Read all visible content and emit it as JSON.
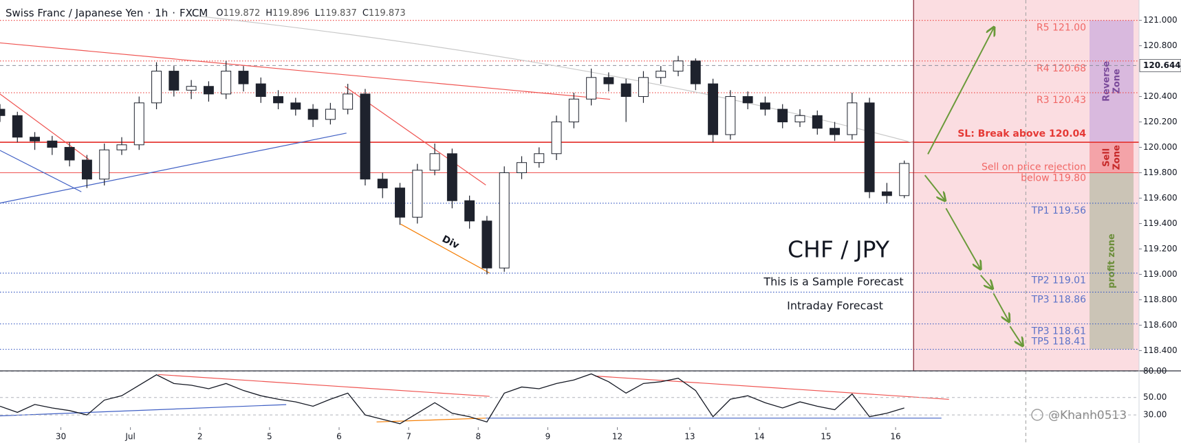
{
  "chart_data": [
    {
      "type": "candlestick",
      "header": {
        "symbol": "Swiss Franc / Japanese Yen",
        "interval": "1h",
        "source": "FXCM",
        "ohlc": [
          {
            "label": "O",
            "value": 119.872
          },
          {
            "label": "H",
            "value": 119.896
          },
          {
            "label": "L",
            "value": 119.837
          },
          {
            "label": "C",
            "value": 119.873
          }
        ]
      },
      "title": "CHF / JPY",
      "subtitles": [
        "This is a Sample Forecast",
        "Intraday Forecast"
      ],
      "annotations": {
        "divergence": "Div",
        "watermark": "@Khanh0513"
      },
      "x": [
        0,
        6,
        12,
        18,
        24,
        30,
        36,
        42,
        48,
        54,
        60,
        66,
        72,
        78,
        84,
        90,
        96,
        102,
        108,
        114,
        120,
        126,
        132,
        138,
        144,
        150,
        156,
        162,
        168,
        174,
        180,
        186,
        192,
        198,
        204,
        210,
        216,
        222,
        228,
        234,
        240,
        246,
        252,
        258,
        264,
        270,
        276,
        282,
        288,
        294,
        300,
        306,
        312
      ],
      "ohlc": [
        [
          120.3,
          120.34,
          120.2,
          120.25
        ],
        [
          120.25,
          120.28,
          120.04,
          120.08
        ],
        [
          120.08,
          120.12,
          119.98,
          120.05
        ],
        [
          120.05,
          120.09,
          119.94,
          120.0
        ],
        [
          120.0,
          120.04,
          119.85,
          119.9
        ],
        [
          119.9,
          119.94,
          119.68,
          119.75
        ],
        [
          119.75,
          120.03,
          119.7,
          119.98
        ],
        [
          119.98,
          120.08,
          119.94,
          120.02
        ],
        [
          120.02,
          120.4,
          119.98,
          120.35
        ],
        [
          120.35,
          120.67,
          120.3,
          120.6
        ],
        [
          120.6,
          120.64,
          120.4,
          120.45
        ],
        [
          120.45,
          120.53,
          120.38,
          120.48
        ],
        [
          120.48,
          120.52,
          120.36,
          120.42
        ],
        [
          120.42,
          120.68,
          120.38,
          120.6
        ],
        [
          120.6,
          120.64,
          120.44,
          120.5
        ],
        [
          120.5,
          120.55,
          120.35,
          120.4
        ],
        [
          120.4,
          120.45,
          120.3,
          120.35
        ],
        [
          120.35,
          120.39,
          120.25,
          120.3
        ],
        [
          120.3,
          120.34,
          120.16,
          120.22
        ],
        [
          120.22,
          120.35,
          120.18,
          120.3
        ],
        [
          120.3,
          120.5,
          120.26,
          120.42
        ],
        [
          120.42,
          120.46,
          119.7,
          119.75
        ],
        [
          119.75,
          119.8,
          119.6,
          119.68
        ],
        [
          119.68,
          119.72,
          119.39,
          119.45
        ],
        [
          119.45,
          119.87,
          119.4,
          119.82
        ],
        [
          119.82,
          120.03,
          119.78,
          119.95
        ],
        [
          119.95,
          119.99,
          119.52,
          119.58
        ],
        [
          119.58,
          119.62,
          119.36,
          119.42
        ],
        [
          119.42,
          119.46,
          119.0,
          119.05
        ],
        [
          119.05,
          119.85,
          119.02,
          119.8
        ],
        [
          119.8,
          119.93,
          119.75,
          119.88
        ],
        [
          119.88,
          120.0,
          119.84,
          119.95
        ],
        [
          119.95,
          120.25,
          119.9,
          120.2
        ],
        [
          120.2,
          120.43,
          120.15,
          120.38
        ],
        [
          120.38,
          120.62,
          120.33,
          120.55
        ],
        [
          120.55,
          120.59,
          120.44,
          120.5
        ],
        [
          120.5,
          120.54,
          120.2,
          120.4
        ],
        [
          120.4,
          120.6,
          120.35,
          120.55
        ],
        [
          120.55,
          120.64,
          120.5,
          120.6
        ],
        [
          120.6,
          120.72,
          120.56,
          120.68
        ],
        [
          120.68,
          120.7,
          120.45,
          120.5
        ],
        [
          120.5,
          120.54,
          120.04,
          120.1
        ],
        [
          120.1,
          120.45,
          120.06,
          120.4
        ],
        [
          120.4,
          120.44,
          120.3,
          120.35
        ],
        [
          120.35,
          120.4,
          120.25,
          120.3
        ],
        [
          120.3,
          120.34,
          120.15,
          120.2
        ],
        [
          120.2,
          120.3,
          120.16,
          120.25
        ],
        [
          120.25,
          120.29,
          120.1,
          120.15
        ],
        [
          120.15,
          120.2,
          120.05,
          120.1
        ],
        [
          120.1,
          120.43,
          120.06,
          120.35
        ],
        [
          120.35,
          120.39,
          119.6,
          119.65
        ],
        [
          119.65,
          119.72,
          119.56,
          119.62
        ],
        [
          119.62,
          119.896,
          119.6,
          119.873
        ]
      ],
      "up_color": "#ffffff",
      "down_color": "#1e222d",
      "wick_color": "#1e222d",
      "xlim": [
        0,
        393
      ],
      "ylim": [
        118.24,
        121.16
      ],
      "xticks": [
        {
          "value": 21,
          "label": "30"
        },
        {
          "value": 45,
          "label": "Jul"
        },
        {
          "value": 69,
          "label": "2"
        },
        {
          "value": 93,
          "label": "5"
        },
        {
          "value": 117,
          "label": "6"
        },
        {
          "value": 141,
          "label": "7"
        },
        {
          "value": 165,
          "label": "8"
        },
        {
          "value": 189,
          "label": "9"
        },
        {
          "value": 213,
          "label": "12"
        },
        {
          "value": 238,
          "label": "13"
        },
        {
          "value": 262,
          "label": "14"
        },
        {
          "value": 285,
          "label": "15"
        },
        {
          "value": 309,
          "label": "16"
        }
      ],
      "yticks": [
        {
          "value": 121.0,
          "label": "121.000"
        },
        {
          "value": 120.8,
          "label": "120.800"
        },
        {
          "value": 120.4,
          "label": "120.400"
        },
        {
          "value": 120.2,
          "label": "120.200"
        },
        {
          "value": 120.0,
          "label": "120.000"
        },
        {
          "value": 119.8,
          "label": "119.800"
        },
        {
          "value": 119.6,
          "label": "119.600"
        },
        {
          "value": 119.4,
          "label": "119.400"
        },
        {
          "value": 119.2,
          "label": "119.200"
        },
        {
          "value": 119.0,
          "label": "119.000"
        },
        {
          "value": 118.8,
          "label": "118.800"
        },
        {
          "value": 118.6,
          "label": "118.600"
        },
        {
          "value": 118.4,
          "label": "118.400"
        }
      ],
      "grid": false,
      "price_marker": 120.644,
      "levels": [
        {
          "label": "R5 121.00",
          "value": 121.0,
          "color": "#ef5350",
          "style": "dotted"
        },
        {
          "label": "R4 120.68",
          "value": 120.68,
          "color": "#ef5350",
          "style": "dotted"
        },
        {
          "label": "R3 120.43",
          "value": 120.43,
          "color": "#ef5350",
          "style": "dotted"
        },
        {
          "label": "SL: Break above 120.04",
          "value": 120.04,
          "color": "#e53935",
          "style": "solid"
        },
        {
          "label": [
            "Sell on price rejection",
            "below 119.80"
          ],
          "value": 119.8,
          "color": "#ef5350",
          "style": "thin"
        },
        {
          "label": "TP1 119.56",
          "value": 119.56,
          "color": "#3f5fc4",
          "style": "dotted"
        },
        {
          "label": "TP2 119.01",
          "value": 119.01,
          "color": "#3f5fc4",
          "style": "dotted"
        },
        {
          "label": "TP3 118.86",
          "value": 118.86,
          "color": "#3f5fc4",
          "style": "dotted"
        },
        {
          "label": "TP3 118.61",
          "value": 118.61,
          "color": "#3f5fc4",
          "style": "dotted"
        },
        {
          "label": "TP5 118.41",
          "value": 118.41,
          "color": "#3f5fc4",
          "style": "dotted"
        }
      ],
      "zones": [
        {
          "label": [
            "Reverse",
            "Zone"
          ],
          "from": 121.0,
          "to": 120.04,
          "color": "#d9b9de",
          "text_color": "#7a4a9a"
        },
        {
          "label": [
            "Sell",
            "Zone"
          ],
          "from": 120.04,
          "to": 119.8,
          "color": "#f4a3a8",
          "text_color": "#c62828"
        },
        {
          "label": [
            "profit zone"
          ],
          "from": 119.8,
          "to": 118.41,
          "color": "#cbc4b6",
          "text_color": "#6b8e3a"
        }
      ]
    },
    {
      "type": "line",
      "x": [
        0,
        6,
        12,
        18,
        24,
        30,
        36,
        42,
        48,
        54,
        60,
        66,
        72,
        78,
        84,
        90,
        96,
        102,
        108,
        114,
        120,
        126,
        132,
        138,
        144,
        150,
        156,
        162,
        168,
        174,
        180,
        186,
        192,
        198,
        204,
        210,
        216,
        222,
        228,
        234,
        240,
        246,
        252,
        258,
        264,
        270,
        276,
        282,
        288,
        294,
        300,
        306,
        312
      ],
      "values": [
        40,
        33,
        42,
        38,
        35,
        30,
        47,
        52,
        64,
        76,
        66,
        64,
        60,
        66,
        58,
        52,
        48,
        45,
        40,
        48,
        55,
        30,
        25,
        20,
        32,
        44,
        32,
        28,
        22,
        55,
        62,
        60,
        66,
        70,
        77,
        68,
        55,
        66,
        68,
        72,
        58,
        28,
        48,
        52,
        44,
        38,
        45,
        40,
        36,
        54,
        28,
        32,
        38
      ],
      "color": "#131722",
      "xlim": [
        0,
        393
      ],
      "ylim": [
        16,
        82
      ],
      "yticks": [
        {
          "value": 80,
          "label": "80.00"
        },
        {
          "value": 50,
          "label": "50.00"
        },
        {
          "value": 30,
          "label": "30.00"
        }
      ]
    }
  ]
}
